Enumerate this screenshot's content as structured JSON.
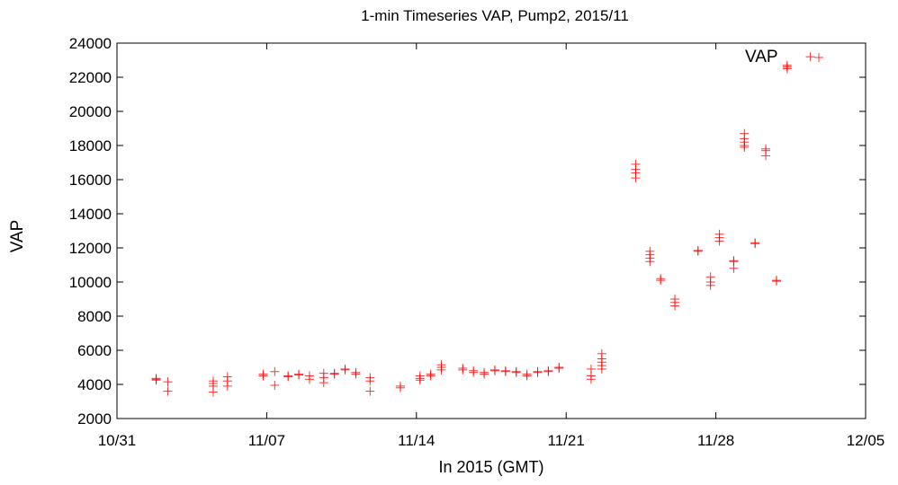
{
  "chart_data": {
    "type": "scatter",
    "title": "1-min Timeseries VAP, Pump2, 2015/11",
    "xlabel": "In 2015 (GMT)",
    "ylabel": "VAP",
    "xlim": [
      "2015-10-31",
      "2015-12-05"
    ],
    "ylim": [
      2000,
      24000
    ],
    "xticks": [
      {
        "date": "2015-10-31",
        "label": "10/31"
      },
      {
        "date": "2015-11-07",
        "label": "11/07"
      },
      {
        "date": "2015-11-14",
        "label": "11/14"
      },
      {
        "date": "2015-11-21",
        "label": "11/21"
      },
      {
        "date": "2015-11-28",
        "label": "11/28"
      },
      {
        "date": "2015-12-05",
        "label": "12/05"
      }
    ],
    "yticks": [
      2000,
      4000,
      6000,
      8000,
      10000,
      12000,
      14000,
      16000,
      18000,
      20000,
      22000,
      24000
    ],
    "marker": "+",
    "color": "#ff0000",
    "legend": {
      "label": "VAP",
      "position": "top-right"
    },
    "grid": false,
    "points": [
      [
        "2015-11-01T20:00",
        4300
      ],
      [
        "2015-11-01T20:00",
        4350
      ],
      [
        "2015-11-01T20:00",
        4250
      ],
      [
        "2015-11-02T09:00",
        4150
      ],
      [
        "2015-11-02T09:00",
        3600
      ],
      [
        "2015-11-04T12:00",
        4200
      ],
      [
        "2015-11-04T12:00",
        3900
      ],
      [
        "2015-11-04T12:00",
        3550
      ],
      [
        "2015-11-04T12:00",
        4050
      ],
      [
        "2015-11-05T04:00",
        4450
      ],
      [
        "2015-11-05T04:00",
        4200
      ],
      [
        "2015-11-05T04:00",
        3900
      ],
      [
        "2015-11-06T20:00",
        4600
      ],
      [
        "2015-11-06T20:00",
        4500
      ],
      [
        "2015-11-07T09:00",
        4750
      ],
      [
        "2015-11-07T09:00",
        3950
      ],
      [
        "2015-11-08T00:00",
        4500
      ],
      [
        "2015-11-08T00:00",
        4450
      ],
      [
        "2015-11-08T12:00",
        4600
      ],
      [
        "2015-11-08T12:00",
        4550
      ],
      [
        "2015-11-09T00:00",
        4500
      ],
      [
        "2015-11-09T00:00",
        4300
      ],
      [
        "2015-11-09T16:00",
        4650
      ],
      [
        "2015-11-09T16:00",
        4400
      ],
      [
        "2015-11-09T16:00",
        4100
      ],
      [
        "2015-11-10T04:00",
        4650
      ],
      [
        "2015-11-10T04:00",
        4600
      ],
      [
        "2015-11-10T16:00",
        4900
      ],
      [
        "2015-11-10T16:00",
        4850
      ],
      [
        "2015-11-11T04:00",
        4700
      ],
      [
        "2015-11-11T04:00",
        4600
      ],
      [
        "2015-11-11T20:00",
        4400
      ],
      [
        "2015-11-11T20:00",
        4200
      ],
      [
        "2015-11-11T20:00",
        3600
      ],
      [
        "2015-11-13T06:00",
        3900
      ],
      [
        "2015-11-13T06:00",
        3800
      ],
      [
        "2015-11-14T04:00",
        4500
      ],
      [
        "2015-11-14T04:00",
        4350
      ],
      [
        "2015-11-14T04:00",
        4250
      ],
      [
        "2015-11-14T16:00",
        4600
      ],
      [
        "2015-11-14T16:00",
        4500
      ],
      [
        "2015-11-15T04:00",
        5000
      ],
      [
        "2015-11-15T04:00",
        4850
      ],
      [
        "2015-11-15T04:00",
        5150
      ],
      [
        "2015-11-16T04:00",
        4950
      ],
      [
        "2015-11-16T04:00",
        4850
      ],
      [
        "2015-11-16T16:00",
        4800
      ],
      [
        "2015-11-16T16:00",
        4700
      ],
      [
        "2015-11-17T04:00",
        4700
      ],
      [
        "2015-11-17T04:00",
        4600
      ],
      [
        "2015-11-17T16:00",
        4850
      ],
      [
        "2015-11-17T16:00",
        4800
      ],
      [
        "2015-11-18T04:00",
        4800
      ],
      [
        "2015-11-18T04:00",
        4750
      ],
      [
        "2015-11-18T16:00",
        4750
      ],
      [
        "2015-11-18T16:00",
        4700
      ],
      [
        "2015-11-19T04:00",
        4600
      ],
      [
        "2015-11-19T04:00",
        4500
      ],
      [
        "2015-11-19T16:00",
        4750
      ],
      [
        "2015-11-19T16:00",
        4700
      ],
      [
        "2015-11-20T04:00",
        4800
      ],
      [
        "2015-11-20T04:00",
        4750
      ],
      [
        "2015-11-20T16:00",
        5000
      ],
      [
        "2015-11-20T16:00",
        4950
      ],
      [
        "2015-11-22T04:00",
        4900
      ],
      [
        "2015-11-22T04:00",
        4500
      ],
      [
        "2015-11-22T04:00",
        4300
      ],
      [
        "2015-11-22T16:00",
        5800
      ],
      [
        "2015-11-22T16:00",
        5500
      ],
      [
        "2015-11-22T16:00",
        5300
      ],
      [
        "2015-11-22T16:00",
        5100
      ],
      [
        "2015-11-22T16:00",
        4900
      ],
      [
        "2015-11-24T06:00",
        16900
      ],
      [
        "2015-11-24T06:00",
        16600
      ],
      [
        "2015-11-24T06:00",
        16400
      ],
      [
        "2015-11-24T06:00",
        16100
      ],
      [
        "2015-11-24T22:00",
        11800
      ],
      [
        "2015-11-24T22:00",
        11600
      ],
      [
        "2015-11-24T22:00",
        11400
      ],
      [
        "2015-11-24T22:00",
        11200
      ],
      [
        "2015-11-25T10:00",
        10200
      ],
      [
        "2015-11-25T10:00",
        10100
      ],
      [
        "2015-11-26T02:00",
        9000
      ],
      [
        "2015-11-26T02:00",
        8800
      ],
      [
        "2015-11-26T02:00",
        8600
      ],
      [
        "2015-11-27T04:00",
        11850
      ],
      [
        "2015-11-27T04:00",
        11800
      ],
      [
        "2015-11-27T18:00",
        10300
      ],
      [
        "2015-11-27T18:00",
        10000
      ],
      [
        "2015-11-27T18:00",
        9800
      ],
      [
        "2015-11-28T04:00",
        12800
      ],
      [
        "2015-11-28T04:00",
        12600
      ],
      [
        "2015-11-28T04:00",
        12400
      ],
      [
        "2015-11-28T20:00",
        11200
      ],
      [
        "2015-11-28T20:00",
        11250
      ],
      [
        "2015-11-28T20:00",
        10800
      ],
      [
        "2015-11-29T08:00",
        18700
      ],
      [
        "2015-11-29T08:00",
        18400
      ],
      [
        "2015-11-29T08:00",
        18200
      ],
      [
        "2015-11-29T08:00",
        18000
      ],
      [
        "2015-11-29T08:00",
        17900
      ],
      [
        "2015-11-29T20:00",
        12300
      ],
      [
        "2015-11-29T20:00",
        12250
      ],
      [
        "2015-11-30T08:00",
        17800
      ],
      [
        "2015-11-30T08:00",
        17700
      ],
      [
        "2015-11-30T08:00",
        17400
      ],
      [
        "2015-11-30T20:00",
        10100
      ],
      [
        "2015-11-30T20:00",
        10050
      ],
      [
        "2015-12-01T08:00",
        22700
      ],
      [
        "2015-12-01T08:00",
        22600
      ],
      [
        "2015-12-01T08:00",
        22500
      ],
      [
        "2015-12-02T10:00",
        23200
      ]
    ]
  }
}
